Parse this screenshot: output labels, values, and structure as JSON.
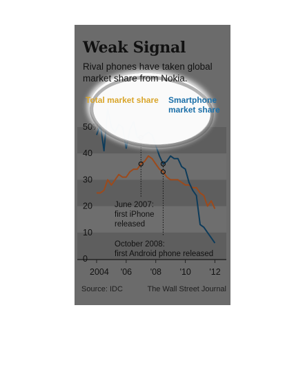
{
  "chart_data": {
    "type": "line",
    "title": "Weak Signal",
    "subtitle": "Rival phones have taken global market share from Nokia.",
    "ylabel": "",
    "xlabel": "",
    "ylim": [
      0,
      50
    ],
    "xlim": [
      2004,
      2012.4
    ],
    "y_ticks": [
      {
        "value": 0,
        "label": "0"
      },
      {
        "value": 10,
        "label": "10"
      },
      {
        "value": 20,
        "label": "20"
      },
      {
        "value": 30,
        "label": "30"
      },
      {
        "value": 40,
        "label": "40"
      },
      {
        "value": 50,
        "label": "50%"
      }
    ],
    "x_ticks": [
      {
        "value": 2004,
        "label": "2004"
      },
      {
        "value": 2006,
        "label": "'06"
      },
      {
        "value": 2008,
        "label": "'08"
      },
      {
        "value": 2010,
        "label": "'10"
      },
      {
        "value": 2012,
        "label": "'12"
      }
    ],
    "grid": "horizontal bands",
    "series": [
      {
        "name": "Total market share",
        "color": "#d9a52a",
        "line_color": "#9c4a1c",
        "x": [
          2004.0,
          2004.25,
          2004.5,
          2004.75,
          2005.0,
          2005.25,
          2005.5,
          2005.75,
          2006.0,
          2006.25,
          2006.5,
          2006.75,
          2007.0,
          2007.25,
          2007.5,
          2007.75,
          2008.0,
          2008.25,
          2008.5,
          2008.75,
          2009.0,
          2009.25,
          2009.5,
          2009.75,
          2010.0,
          2010.25,
          2010.5,
          2010.75,
          2011.0,
          2011.25,
          2011.5,
          2011.75,
          2012.0
        ],
        "values": [
          25,
          25,
          26,
          30,
          28,
          30,
          32,
          31,
          31,
          33,
          34,
          34,
          36,
          37,
          39,
          38,
          36,
          34,
          33,
          31,
          30,
          30,
          30,
          29,
          28,
          28,
          27,
          27,
          25,
          24,
          20,
          22,
          19
        ]
      },
      {
        "name": "Smartphone market share",
        "color": "#1b6fa8",
        "line_color": "#0d3b5a",
        "x": [
          2004.0,
          2004.25,
          2004.5,
          2004.75,
          2005.0,
          2005.25,
          2005.5,
          2005.75,
          2006.0,
          2006.25,
          2006.5,
          2006.75,
          2007.0,
          2007.25,
          2007.5,
          2007.75,
          2008.0,
          2008.25,
          2008.5,
          2008.75,
          2009.0,
          2009.25,
          2009.5,
          2009.75,
          2010.0,
          2010.25,
          2010.5,
          2010.75,
          2011.0,
          2011.25,
          2011.5,
          2011.75,
          2012.0
        ],
        "values": [
          47,
          51,
          41,
          57,
          50,
          48,
          51,
          50,
          42,
          49,
          52,
          46,
          46,
          47,
          48,
          47,
          43,
          39,
          36,
          37,
          39,
          38,
          38,
          35,
          34,
          29,
          26,
          24,
          13,
          12,
          10,
          8,
          6
        ]
      }
    ],
    "annotations": [
      {
        "x": 2007.0,
        "lines": [
          "June 2007:",
          "first iPhone",
          "released"
        ]
      },
      {
        "x": 2008.5,
        "lines": [
          "October 2008:",
          "first Android phone released"
        ]
      }
    ],
    "legend_placement": "top, inline labels"
  },
  "footer": {
    "source": "Source: IDC",
    "credit": "The Wall Street Journal"
  },
  "colors": {
    "panel_background": "#6b6b6b",
    "band_dark": "#5e5e5e",
    "band_light": "#6e6e6e",
    "text": "#111111"
  }
}
